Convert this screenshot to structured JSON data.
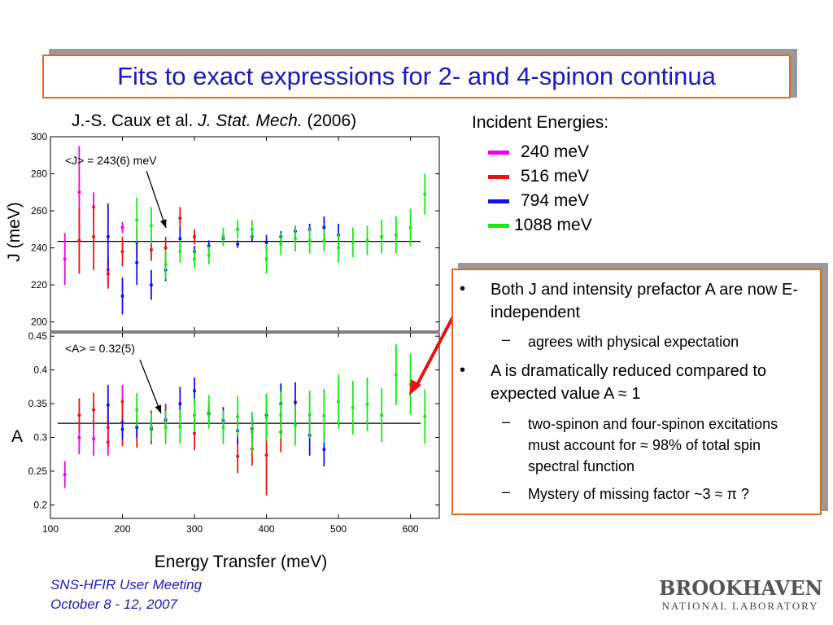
{
  "title": "Fits to exact expressions for 2- and 4-spinon continua",
  "reference": {
    "authors": "J.-S. Caux et al. ",
    "journal": "J. Stat. Mech.",
    "year": " (2006)"
  },
  "legend": {
    "title": "Incident Energies:",
    "items": [
      {
        "label": "240 meV",
        "color": "#ee00ee"
      },
      {
        "label": "516 meV",
        "color": "#ee1111"
      },
      {
        "label": "794 meV",
        "color": "#1111ee"
      },
      {
        "label": "1088 meV",
        "color": "#11ee11"
      }
    ]
  },
  "bullets": {
    "b1": "Both J and intensity prefactor A are now E-independent",
    "b1a": "agrees with physical expectation",
    "b2": "A is dramatically reduced compared to expected value A ≈ 1",
    "b2a": "two-spinon and four-spinon excitations must account for ≈ 98% of total spin spectral function",
    "b2b": "Mystery of missing factor ~3 ≈ π ?"
  },
  "footer": {
    "line1": "SNS-HFIR User Meeting",
    "line2": "October 8 - 12, 2007"
  },
  "logo": {
    "top": "BROOKHAVEN",
    "bottom": "NATIONAL LABORATORY"
  },
  "chart_data": [
    {
      "type": "scatter",
      "ylabel": "J (meV)",
      "xlim": [
        100,
        640
      ],
      "ylim": [
        195,
        300
      ],
      "yticks": [
        200,
        220,
        240,
        260,
        280,
        300
      ],
      "fit_value": 243.5,
      "annotation": "<J> = 243(6) meV",
      "series": [
        {
          "name": "240 meV",
          "color": "#ee00ee",
          "points": [
            [
              120,
              234,
              14
            ],
            [
              140,
              270,
              25
            ],
            [
              160,
              262,
              8
            ],
            [
              180,
              228,
              8
            ],
            [
              200,
              251,
              3
            ]
          ]
        },
        {
          "name": "516 meV",
          "color": "#ee1111",
          "points": [
            [
              140,
              244,
              18
            ],
            [
              160,
              246,
              18
            ],
            [
              180,
              226,
              8
            ],
            [
              200,
              238,
              8
            ],
            [
              220,
              243,
              8
            ],
            [
              240,
              239,
              6
            ],
            [
              260,
              240,
              6
            ],
            [
              280,
              256,
              6
            ],
            [
              300,
              246,
              4
            ]
          ]
        },
        {
          "name": "794 meV",
          "color": "#1111ee",
          "points": [
            [
              180,
              246,
              18
            ],
            [
              200,
              214,
              10
            ],
            [
              220,
              232,
              12
            ],
            [
              240,
              220,
              8
            ],
            [
              260,
              228,
              6
            ],
            [
              280,
              245,
              6
            ],
            [
              300,
              238,
              3
            ],
            [
              320,
              241,
              3
            ],
            [
              340,
              245,
              3
            ],
            [
              360,
              242,
              2
            ],
            [
              380,
              246,
              3
            ],
            [
              400,
              243,
              4
            ],
            [
              420,
              246,
              3
            ],
            [
              440,
              249,
              3
            ],
            [
              460,
              250,
              3
            ],
            [
              480,
              251,
              6
            ],
            [
              500,
              247,
              6
            ]
          ]
        },
        {
          "name": "1088 meV",
          "color": "#11ee11",
          "points": [
            [
              220,
              255,
              12
            ],
            [
              240,
              252,
              10
            ],
            [
              260,
              231,
              8
            ],
            [
              280,
              238,
              6
            ],
            [
              300,
              234,
              5
            ],
            [
              320,
              236,
              5
            ],
            [
              340,
              246,
              5
            ],
            [
              360,
              250,
              5
            ],
            [
              380,
              250,
              5
            ],
            [
              400,
              234,
              8
            ],
            [
              420,
              242,
              6
            ],
            [
              440,
              245,
              7
            ],
            [
              460,
              244,
              7
            ],
            [
              480,
              244,
              6
            ],
            [
              500,
              240,
              8
            ],
            [
              520,
              243,
              8
            ],
            [
              540,
              244,
              8
            ],
            [
              560,
              246,
              9
            ],
            [
              580,
              247,
              10
            ],
            [
              600,
              251,
              10
            ],
            [
              620,
              269,
              11
            ]
          ]
        }
      ]
    },
    {
      "type": "scatter",
      "ylabel": "A",
      "xlabel": "Energy Transfer (meV)",
      "xlim": [
        100,
        640
      ],
      "ylim": [
        0.18,
        0.455
      ],
      "yticks": [
        0.2,
        0.25,
        0.3,
        0.35,
        0.4,
        0.45
      ],
      "xticks": [
        100,
        200,
        300,
        400,
        500,
        600
      ],
      "fit_value": 0.321,
      "annotation": "<A> = 0.32(5)",
      "series": [
        {
          "name": "240 meV",
          "color": "#ee00ee",
          "points": [
            [
              120,
              0.245,
              0.02
            ],
            [
              140,
              0.3,
              0.025
            ],
            [
              160,
              0.298,
              0.025
            ],
            [
              180,
              0.293,
              0.02
            ],
            [
              200,
              0.353,
              0.025
            ]
          ]
        },
        {
          "name": "516 meV",
          "color": "#ee1111",
          "points": [
            [
              140,
              0.333,
              0.025
            ],
            [
              160,
              0.341,
              0.025
            ],
            [
              180,
              0.315,
              0.03
            ],
            [
              200,
              0.322,
              0.035
            ],
            [
              220,
              0.315,
              0.03
            ],
            [
              240,
              0.315,
              0.025
            ],
            [
              260,
              0.325,
              0.025
            ],
            [
              300,
              0.306,
              0.025
            ],
            [
              360,
              0.272,
              0.025
            ],
            [
              380,
              0.283,
              0.025
            ],
            [
              400,
              0.274,
              0.06
            ],
            [
              420,
              0.308,
              0.03
            ]
          ]
        },
        {
          "name": "794 meV",
          "color": "#1111ee",
          "points": [
            [
              180,
              0.348,
              0.03
            ],
            [
              200,
              0.312,
              0.015
            ],
            [
              220,
              0.315,
              0.015
            ],
            [
              240,
              0.312,
              0.015
            ],
            [
              260,
              0.326,
              0.015
            ],
            [
              280,
              0.35,
              0.025
            ],
            [
              300,
              0.369,
              0.02
            ],
            [
              320,
              0.335,
              0.015
            ],
            [
              340,
              0.325,
              0.02
            ],
            [
              360,
              0.31,
              0.02
            ],
            [
              380,
              0.313,
              0.02
            ],
            [
              400,
              0.333,
              0.03
            ],
            [
              420,
              0.35,
              0.03
            ],
            [
              440,
              0.352,
              0.03
            ],
            [
              460,
              0.303,
              0.03
            ],
            [
              480,
              0.282,
              0.025
            ]
          ]
        },
        {
          "name": "1088 meV",
          "color": "#11ee11",
          "points": [
            [
              220,
              0.341,
              0.025
            ],
            [
              240,
              0.316,
              0.02
            ],
            [
              260,
              0.315,
              0.025
            ],
            [
              280,
              0.316,
              0.025
            ],
            [
              300,
              0.333,
              0.025
            ],
            [
              320,
              0.338,
              0.025
            ],
            [
              340,
              0.315,
              0.025
            ],
            [
              360,
              0.331,
              0.03
            ],
            [
              380,
              0.308,
              0.03
            ],
            [
              400,
              0.33,
              0.035
            ],
            [
              420,
              0.333,
              0.035
            ],
            [
              440,
              0.318,
              0.03
            ],
            [
              460,
              0.334,
              0.035
            ],
            [
              480,
              0.332,
              0.04
            ],
            [
              500,
              0.353,
              0.04
            ],
            [
              520,
              0.344,
              0.04
            ],
            [
              540,
              0.349,
              0.04
            ],
            [
              560,
              0.333,
              0.04
            ],
            [
              580,
              0.393,
              0.045
            ],
            [
              600,
              0.379,
              0.045
            ],
            [
              620,
              0.331,
              0.04
            ]
          ]
        }
      ]
    }
  ]
}
